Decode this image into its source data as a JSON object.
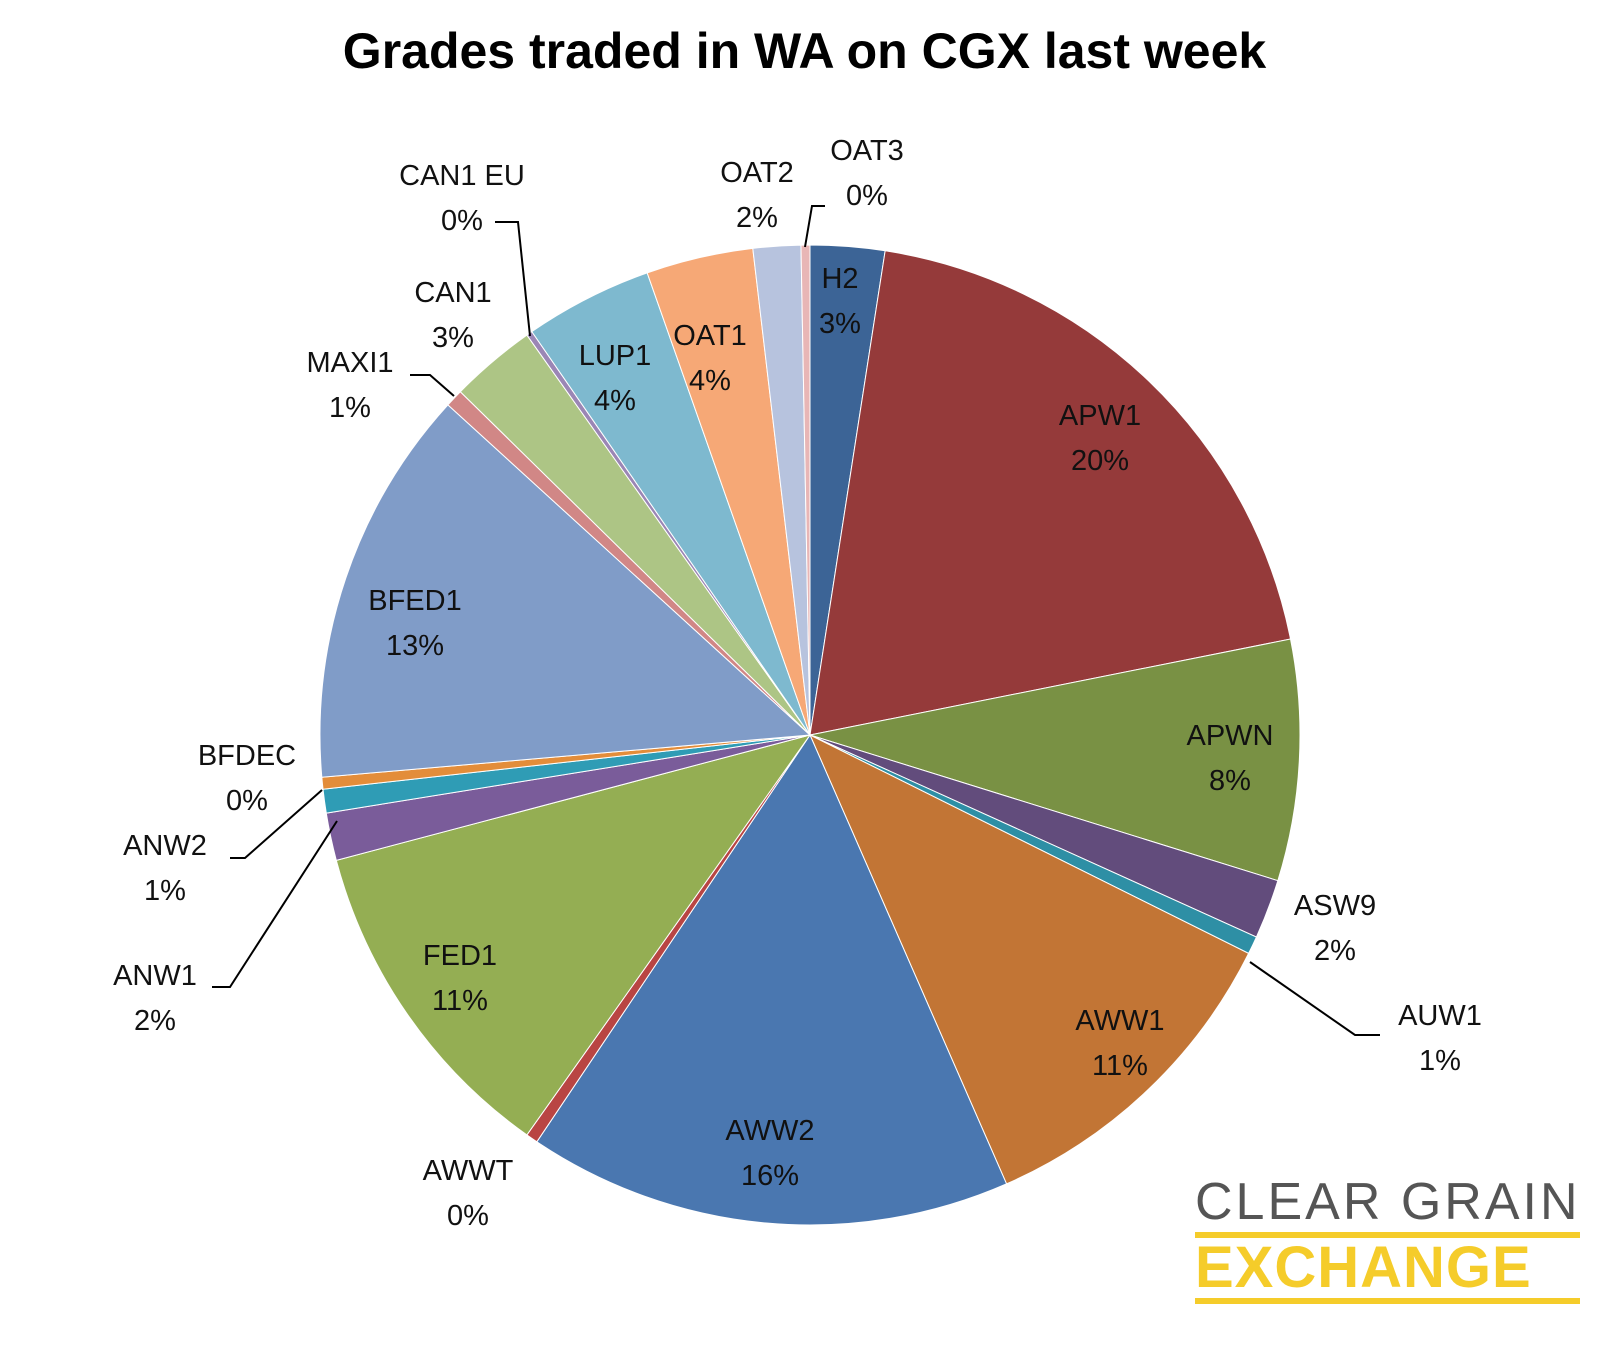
{
  "chart_data": {
    "type": "pie",
    "title": "Grades traded in WA on CGX last week",
    "start_angle_deg": 0,
    "direction": "clockwise",
    "slices": [
      {
        "name": "H2",
        "pct_label": "3%",
        "value": 2.5,
        "color": "#3c6496"
      },
      {
        "name": "APW1",
        "pct_label": "20%",
        "value": 19.8,
        "color": "#953a3a"
      },
      {
        "name": "APWN",
        "pct_label": "8%",
        "value": 8.1,
        "color": "#799144"
      },
      {
        "name": "ASW9",
        "pct_label": "2%",
        "value": 2.0,
        "color": "#624c7c"
      },
      {
        "name": "AUW1",
        "pct_label": "1%",
        "value": 0.6,
        "color": "#2e8fa5"
      },
      {
        "name": "AWW1",
        "pct_label": "11%",
        "value": 11.3,
        "color": "#c27535"
      },
      {
        "name": "AWW2",
        "pct_label": "16%",
        "value": 16.3,
        "color": "#4a77b0"
      },
      {
        "name": "AWWT",
        "pct_label": "0%",
        "value": 0.4,
        "color": "#b94543"
      },
      {
        "name": "FED1",
        "pct_label": "11%",
        "value": 11.3,
        "color": "#94ae53"
      },
      {
        "name": "ANW1",
        "pct_label": "2%",
        "value": 1.6,
        "color": "#7a5c9a"
      },
      {
        "name": "ANW2",
        "pct_label": "1%",
        "value": 0.8,
        "color": "#2f9cb5"
      },
      {
        "name": "BFDEC",
        "pct_label": "0%",
        "value": 0.4,
        "color": "#e38d3a"
      },
      {
        "name": "BFED1",
        "pct_label": "13%",
        "value": 13.4,
        "color": "#809cc8"
      },
      {
        "name": "MAXI1",
        "pct_label": "1%",
        "value": 0.6,
        "color": "#d18786"
      },
      {
        "name": "CAN1",
        "pct_label": "3%",
        "value": 2.9,
        "color": "#adc585"
      },
      {
        "name": "CAN1 EU",
        "pct_label": "0%",
        "value": 0.2,
        "color": "#9b86b5"
      },
      {
        "name": "LUP1",
        "pct_label": "4%",
        "value": 4.3,
        "color": "#7eb9cf"
      },
      {
        "name": "OAT1",
        "pct_label": "4%",
        "value": 3.6,
        "color": "#f6a876"
      },
      {
        "name": "OAT2",
        "pct_label": "2%",
        "value": 1.6,
        "color": "#b7c3de"
      },
      {
        "name": "OAT3",
        "pct_label": "0%",
        "value": 0.3,
        "color": "#e8b6b6"
      }
    ]
  },
  "logo": {
    "line1": "CLEAR GRAIN",
    "line2": "EXCHANGE"
  }
}
